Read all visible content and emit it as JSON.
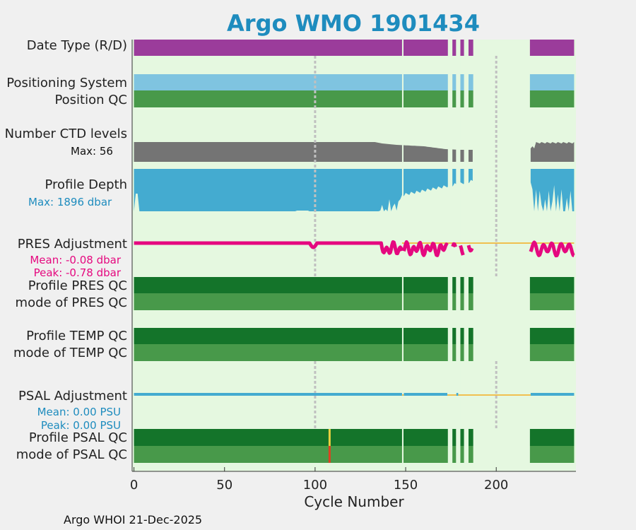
{
  "chart_data": {
    "type": "timeline",
    "title": "Argo WMO 1901434",
    "xlabel": "Cycle Number",
    "xlim": [
      -1,
      244
    ],
    "xticks": [
      0,
      50,
      100,
      150,
      200
    ],
    "footer": "Argo WHOI 21-Dec-2025",
    "gaps": [
      [
        148,
        148.8
      ],
      [
        173.3,
        175.8
      ],
      [
        177.8,
        180.2
      ],
      [
        182.2,
        184.7
      ],
      [
        187.3,
        218.6
      ]
    ],
    "dotted_cycles": [
      100,
      200
    ],
    "rows": {
      "date_type": {
        "label": "Date Type (R/D)"
      },
      "positioning": {
        "label": "Positioning System"
      },
      "position_qc": {
        "label": "Position QC"
      },
      "ctd_levels": {
        "label": "Number CTD levels",
        "max_label": "Max: 56"
      },
      "profile_depth": {
        "label": "Profile Depth",
        "max_label": "Max: 1896 dbar"
      },
      "pres_adj": {
        "label": "PRES Adjustment",
        "mean_label": "Mean: -0.08 dbar",
        "peak_label": "Peak: -0.78 dbar"
      },
      "pres_qc": {
        "label": "Profile PRES QC",
        "mode_label": "mode of PRES QC"
      },
      "temp_qc": {
        "label": "Profile TEMP QC",
        "mode_label": "mode of TEMP QC"
      },
      "psal_adj": {
        "label": "PSAL Adjustment",
        "mean_label": "Mean: 0.00 PSU",
        "peak_label": "Peak: 0.00 PSU"
      },
      "psal_qc": {
        "label": "Profile PSAL QC",
        "mode_label": "mode of PSAL QC"
      }
    },
    "psal_flag_cycle": 108,
    "colors": {
      "title": "#1e8cbe",
      "plot_bg": "#e5f8e0",
      "date_type": "#9b3c9b",
      "positioning": "#7fc4e0",
      "position_qc": "#48994a",
      "ctd": "#747474",
      "depth": "#44abd0",
      "pres": "#e5087f",
      "zero_line": "#f0c050",
      "qc_dark": "#14742a",
      "qc_mid": "#48994a",
      "psal": "#44abd0",
      "flag_yellow": "#e8d040",
      "flag_red": "#e04020",
      "dotted": "#c0c0c0",
      "blue_text": "#1e8cbe",
      "magenta_text": "#e5087f"
    }
  }
}
